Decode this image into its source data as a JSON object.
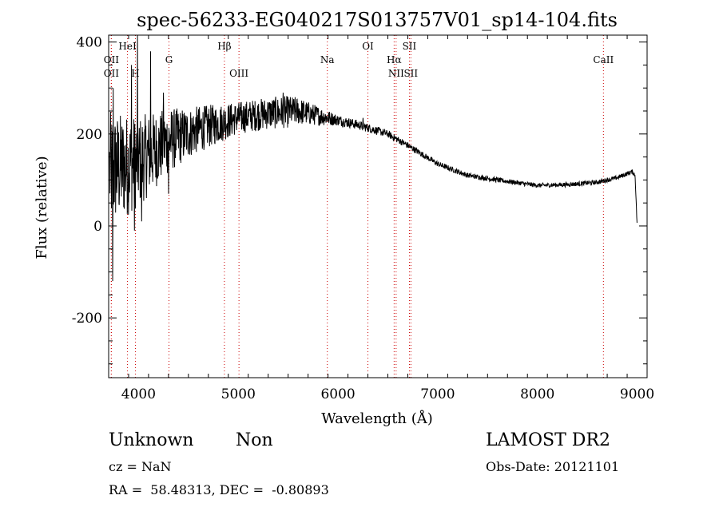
{
  "chart_data": {
    "type": "line",
    "title": "spec-56233-EG040217S013757V01_sp14-104.fits",
    "xlabel": "Wavelength (Å)",
    "ylabel": "Flux (relative)",
    "xlim": [
      3700,
      9100
    ],
    "ylim": [
      -330,
      415
    ],
    "x_ticks": [
      4000,
      5000,
      6000,
      7000,
      8000,
      9000
    ],
    "y_ticks": [
      -200,
      0,
      200,
      400
    ],
    "grid": false,
    "series": [
      {
        "line_color": "#000000",
        "continuum": [
          [
            3700,
            120
          ],
          [
            4000,
            140
          ],
          [
            4300,
            185
          ],
          [
            4600,
            210
          ],
          [
            5000,
            235
          ],
          [
            5300,
            245
          ],
          [
            5600,
            250
          ],
          [
            5900,
            235
          ],
          [
            6200,
            220
          ],
          [
            6500,
            200
          ],
          [
            6700,
            175
          ],
          [
            7000,
            135
          ],
          [
            7300,
            110
          ],
          [
            7600,
            100
          ],
          [
            8000,
            88
          ],
          [
            8300,
            90
          ],
          [
            8600,
            95
          ],
          [
            8800,
            105
          ],
          [
            8950,
            118
          ],
          [
            8980,
            110
          ],
          [
            9000,
            0
          ]
        ],
        "noise_amplitude": [
          [
            3700,
            130
          ],
          [
            3800,
            120
          ],
          [
            4000,
            100
          ],
          [
            4200,
            80
          ],
          [
            4500,
            55
          ],
          [
            5000,
            35
          ],
          [
            5500,
            35
          ],
          [
            6000,
            12
          ],
          [
            6500,
            8
          ],
          [
            7000,
            6
          ],
          [
            8000,
            5
          ],
          [
            9000,
            5
          ]
        ],
        "spikes": [
          [
            3745,
            300
          ],
          [
            3740,
            -120
          ],
          [
            3930,
            350
          ],
          [
            3960,
            330
          ],
          [
            3990,
            420
          ],
          [
            4120,
            380
          ],
          [
            4030,
            10
          ],
          [
            3960,
            -10
          ],
          [
            4250,
            290
          ],
          [
            4300,
            70
          ],
          [
            5450,
            290
          ],
          [
            6250,
            235
          ]
        ]
      }
    ],
    "lines": [
      {
        "label": "OII",
        "x": 3727,
        "row": 2
      },
      {
        "label": "OII",
        "x": 3727,
        "row": 3
      },
      {
        "label": "HeI",
        "x": 3889,
        "row": 1
      },
      {
        "label": "H",
        "x": 3968,
        "row": 3
      },
      {
        "label": "G",
        "x": 4305,
        "row": 2
      },
      {
        "label": "Hβ",
        "x": 4861,
        "row": 1
      },
      {
        "label": "OIII",
        "x": 5007,
        "row": 3
      },
      {
        "label": "Na",
        "x": 5893,
        "row": 2
      },
      {
        "label": "OI",
        "x": 6300,
        "row": 1
      },
      {
        "label": "Hα",
        "x": 6563,
        "row": 2
      },
      {
        "label": "NII",
        "x": 6583,
        "row": 3
      },
      {
        "label": "SII",
        "x": 6716,
        "row": 1
      },
      {
        "label": "SII",
        "x": 6731,
        "row": 3
      },
      {
        "label": "CaII",
        "x": 8662,
        "row": 2
      }
    ],
    "line_marker_color": "#cc0000"
  },
  "info": {
    "class_text": "Unknown",
    "subclass_text": "Non",
    "survey_text": "LAMOST DR2",
    "cz_text": "cz = NaN",
    "obsdate_text": "Obs-Date: 20121101",
    "radec_text": "RA =  58.48313, DEC =  -0.80893"
  }
}
